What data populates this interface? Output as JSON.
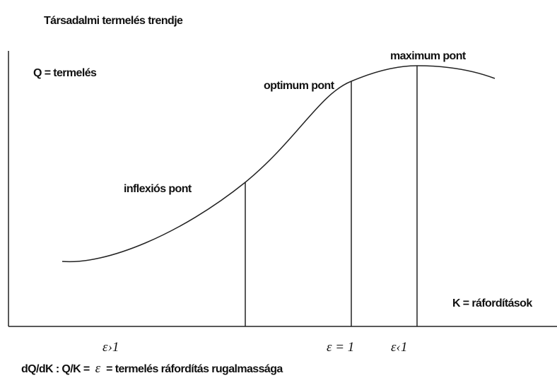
{
  "title": "Társadalmi termelés trendje",
  "y_axis_label": "Q = termelés",
  "x_axis_label": "K = ráfordítások",
  "points": {
    "maximum": "maximum pont",
    "optimum": "optimum pont",
    "inflection": "inflexiós pont"
  },
  "elasticity_labels": [
    "ε›1",
    "ε = 1",
    "ε‹1"
  ],
  "footer": {
    "left": "dQ/dK : Q/K =",
    "symbol": "ε",
    "right": "= termelés ráfordítás rugalmassága"
  }
}
